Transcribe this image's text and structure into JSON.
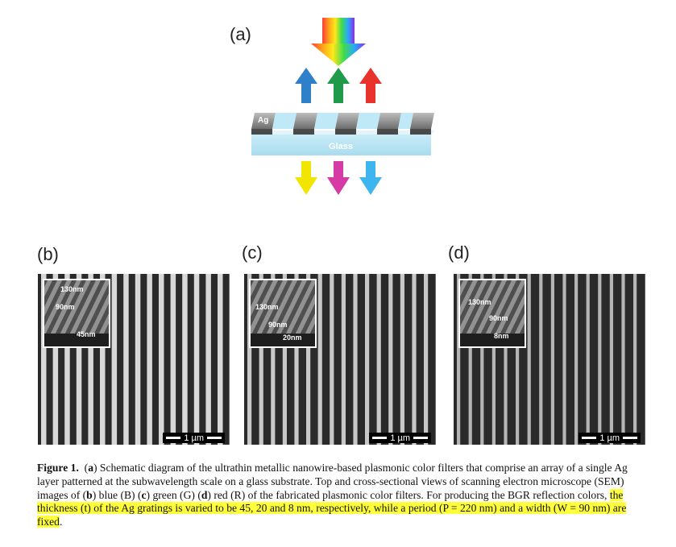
{
  "panels": {
    "a": "(a)",
    "b": "(b)",
    "c": "(c)",
    "d": "(d)"
  },
  "schematic": {
    "ag_label": "Ag",
    "glass_label": "Glass"
  },
  "sem": [
    {
      "period_label": "130nm",
      "width_label": "90nm",
      "thickness_label": "45nm",
      "scale": "1 µm"
    },
    {
      "period_label": "130nm",
      "width_label": "90nm",
      "thickness_label": "20nm",
      "scale": "1 µm"
    },
    {
      "period_label": "130nm",
      "width_label": "90nm",
      "thickness_label": "8nm",
      "scale": "1 µm"
    }
  ],
  "caption": {
    "fig_label": "Figure 1.",
    "p1": "(",
    "a": "a",
    "p2": ") Schematic diagram of the ultrathin metallic nanowire-based plasmonic color filters that comprise an array of a single Ag layer patterned at the subwavelength scale on a glass substrate. Top and cross-sectional views of scanning electron microscope (SEM) images of (",
    "b": "b",
    "p3": ") blue (B) (",
    "c": "c",
    "p4": ") green (G) (",
    "d": "d",
    "p5": ") red (R) of the fabricated plasmonic color filters. For producing the BGR reflection colors, ",
    "highlight": "the thickness (t) of the Ag gratings is varied to be 45, 20 and 8 nm, respectively, while a period (P = 220 nm) and a width (W = 90 nm) are fixed",
    "end": "."
  }
}
